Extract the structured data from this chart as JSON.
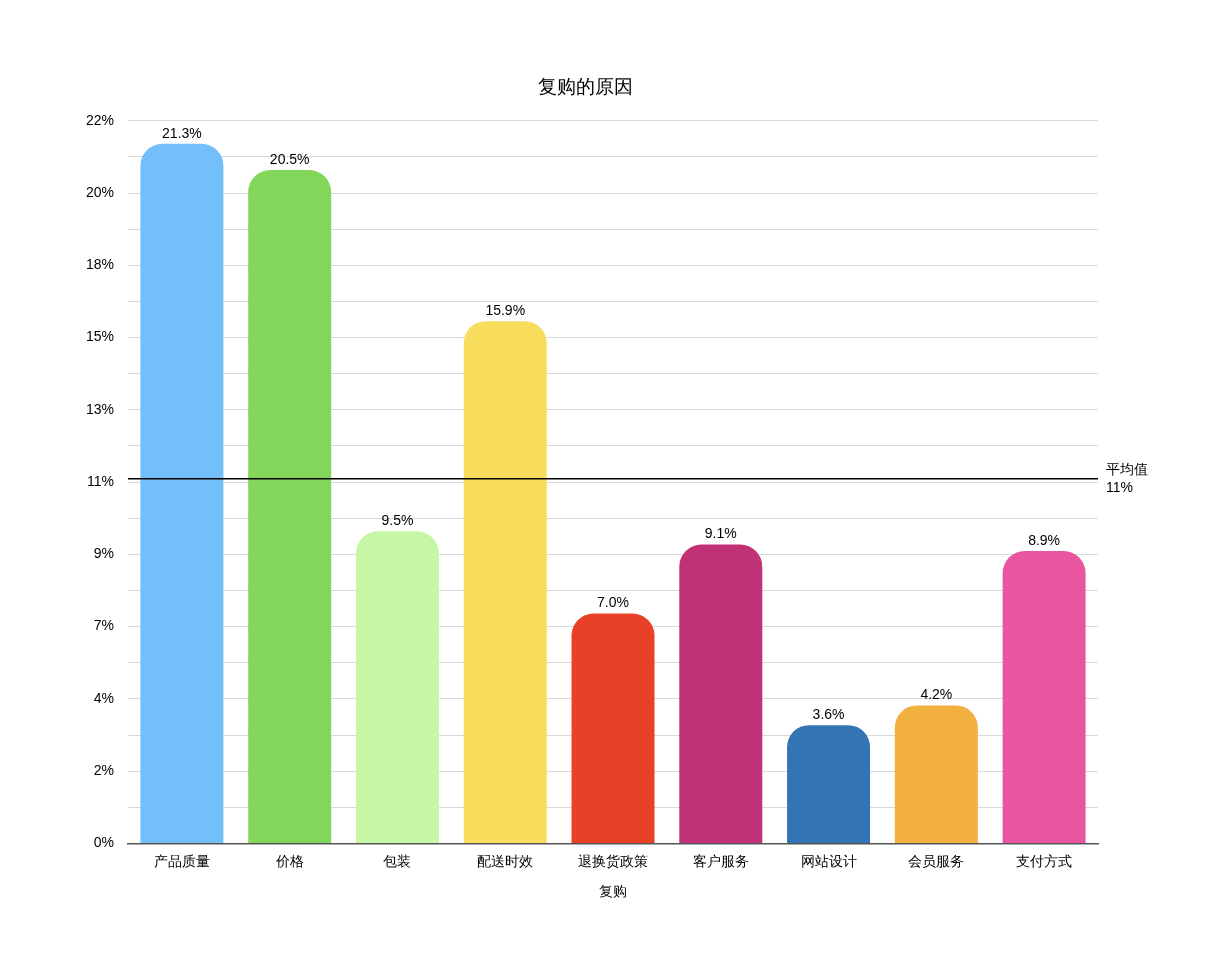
{
  "chart_data": {
    "type": "bar",
    "title": "复购的原因",
    "xlabel": "复购",
    "categories": [
      "产品质量",
      "价格",
      "包装",
      "配送时效",
      "退换货政策",
      "客户服务",
      "网站设计",
      "会员服务",
      "支付方式"
    ],
    "values": [
      21.3,
      20.5,
      9.5,
      15.9,
      7.0,
      9.1,
      3.6,
      4.2,
      8.9
    ],
    "colors": [
      "#73bffa",
      "#82d659",
      "#c6f7a6",
      "#f8dc5c",
      "#e94127",
      "#c13175",
      "#3374b5",
      "#f1b040",
      "#e9559f"
    ],
    "value_labels": [
      "21.3%",
      "20.5%",
      "9.5%",
      "15.9%",
      "7.0%",
      "9.1%",
      "3.6%",
      "4.2%",
      "8.9%"
    ],
    "ylim": [
      0,
      22
    ],
    "yticks": [
      {
        "value": 0,
        "label": "0%"
      },
      {
        "value": 1.1,
        "label": null
      },
      {
        "value": 2.2,
        "label": "2%"
      },
      {
        "value": 3.3,
        "label": null
      },
      {
        "value": 4.4,
        "label": "4%"
      },
      {
        "value": 5.5,
        "label": null
      },
      {
        "value": 6.6,
        "label": "7%"
      },
      {
        "value": 7.7,
        "label": null
      },
      {
        "value": 8.8,
        "label": "9%"
      },
      {
        "value": 9.9,
        "label": null
      },
      {
        "value": 11,
        "label": "11%"
      },
      {
        "value": 12.1,
        "label": null
      },
      {
        "value": 13.2,
        "label": "13%"
      },
      {
        "value": 14.3,
        "label": null
      },
      {
        "value": 15.4,
        "label": "15%"
      },
      {
        "value": 16.5,
        "label": null
      },
      {
        "value": 17.6,
        "label": "18%"
      },
      {
        "value": 18.7,
        "label": null
      },
      {
        "value": 19.8,
        "label": "20%"
      },
      {
        "value": 20.9,
        "label": null
      },
      {
        "value": 22,
        "label": "22%"
      }
    ],
    "grid": "y",
    "ref_lines": [
      {
        "axis": "y",
        "value": 11.1,
        "label": "平均值\n11%",
        "color": "#000000"
      }
    ]
  }
}
